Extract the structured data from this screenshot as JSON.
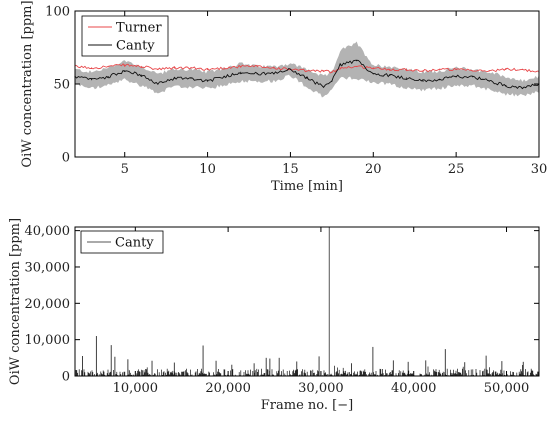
{
  "chart_data": [
    {
      "type": "line",
      "xlabel": "Time [min]",
      "ylabel": "OiW concentration [ppm]",
      "xlim": [
        2,
        30
      ],
      "ylim": [
        0,
        100
      ],
      "xticks": [
        5,
        10,
        15,
        20,
        25,
        30
      ],
      "yticks": [
        0,
        50,
        100
      ],
      "xtick_labels": [
        "5",
        "10",
        "15",
        "20",
        "25",
        "30"
      ],
      "ytick_labels": [
        "0",
        "50",
        "100"
      ],
      "grid": false,
      "legend": "top-left",
      "series": [
        {
          "name": "Turner",
          "color": "#e8474a",
          "x": [
            2,
            3,
            4,
            5,
            6,
            7,
            8,
            9,
            10,
            11,
            12,
            13,
            14,
            15,
            16,
            17,
            17.5,
            18,
            19,
            20,
            21,
            22,
            23,
            24,
            25,
            26,
            27,
            28,
            29,
            30
          ],
          "values": [
            62,
            61,
            62,
            63,
            62,
            60,
            61,
            61,
            60,
            61,
            62,
            62,
            61,
            60,
            59,
            59,
            58,
            61,
            62,
            61,
            60,
            60,
            59,
            60,
            60,
            59,
            59,
            60,
            60,
            58
          ]
        },
        {
          "name": "Canty",
          "color": "#111111",
          "band_color": "#b3b3b3",
          "x": [
            2,
            3,
            4,
            5,
            6,
            7,
            8,
            9,
            10,
            11,
            12,
            13,
            14,
            15,
            16,
            17,
            17.5,
            18,
            19,
            20,
            21,
            22,
            23,
            24,
            25,
            26,
            27,
            28,
            29,
            30
          ],
          "values": [
            55,
            53,
            55,
            59,
            56,
            50,
            54,
            54,
            52,
            55,
            58,
            57,
            57,
            60,
            54,
            48,
            52,
            63,
            66,
            57,
            56,
            54,
            52,
            53,
            55,
            55,
            52,
            49,
            47,
            50
          ],
          "band_lower": [
            50,
            47,
            49,
            53,
            49,
            44,
            48,
            48,
            47,
            49,
            52,
            52,
            52,
            56,
            48,
            41,
            46,
            54,
            54,
            51,
            50,
            47,
            46,
            47,
            49,
            49,
            46,
            43,
            42,
            45
          ],
          "band_upper": [
            60,
            58,
            61,
            66,
            62,
            57,
            60,
            60,
            58,
            61,
            64,
            62,
            62,
            64,
            60,
            55,
            58,
            73,
            78,
            63,
            62,
            60,
            58,
            59,
            61,
            60,
            58,
            55,
            52,
            55
          ]
        }
      ]
    },
    {
      "type": "line",
      "xlabel": "Frame no. [−]",
      "ylabel": "OiW concentration [ppm]",
      "xlim": [
        3500,
        53500
      ],
      "ylim": [
        0,
        41000
      ],
      "xticks": [
        10000,
        20000,
        30000,
        40000,
        50000
      ],
      "yticks": [
        0,
        10000,
        20000,
        30000,
        40000
      ],
      "xtick_labels": [
        "10,000",
        "20,000",
        "30,000",
        "40,000",
        "50,000"
      ],
      "ytick_labels": [
        "0",
        "10,000",
        "20,000",
        "30,000",
        "40,000"
      ],
      "grid": false,
      "legend": "top-left",
      "series": [
        {
          "name": "Canty",
          "color": "#111111",
          "baseline_range": [
            0,
            2000
          ],
          "spikes": [
            [
              4300,
              5500
            ],
            [
              5800,
              11000
            ],
            [
              7400,
              8500
            ],
            [
              7800,
              5300
            ],
            [
              9200,
              4600
            ],
            [
              11800,
              4200
            ],
            [
              14200,
              3700
            ],
            [
              17300,
              8400
            ],
            [
              18700,
              4200
            ],
            [
              20400,
              3100
            ],
            [
              22800,
              3500
            ],
            [
              24100,
              5000
            ],
            [
              24500,
              4800
            ],
            [
              25500,
              5000
            ],
            [
              27400,
              4000
            ],
            [
              29800,
              5400
            ],
            [
              30900,
              41000
            ],
            [
              33300,
              3500
            ],
            [
              35600,
              8000
            ],
            [
              37800,
              4300
            ],
            [
              39400,
              3900
            ],
            [
              41300,
              4300
            ],
            [
              43400,
              7400
            ],
            [
              45500,
              3800
            ],
            [
              47800,
              5600
            ],
            [
              49500,
              4100
            ],
            [
              51800,
              3900
            ]
          ]
        }
      ]
    }
  ]
}
